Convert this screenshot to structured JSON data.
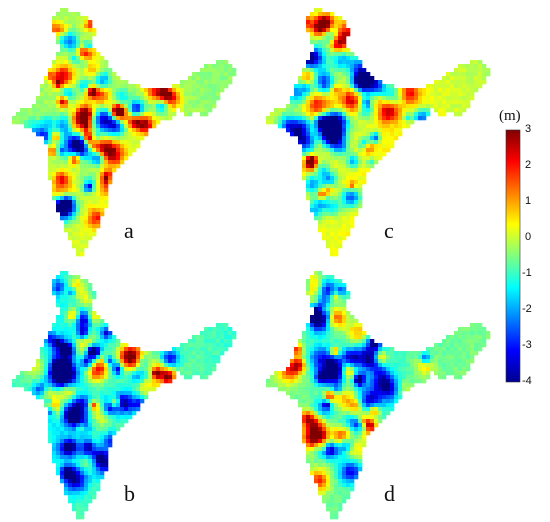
{
  "panels": [
    {
      "label": "a",
      "seed": 11,
      "base": -0.15,
      "hot": 0.55,
      "cold": 0.45
    },
    {
      "label": "c",
      "seed": 29,
      "base": 0.15,
      "hot": 0.4,
      "cold": 0.6
    },
    {
      "label": "b",
      "seed": 47,
      "base": -0.9,
      "hot": 0.5,
      "cold": 0.75
    },
    {
      "label": "d",
      "seed": 83,
      "base": -0.7,
      "hot": 0.55,
      "cold": 0.6
    }
  ],
  "colorbar": {
    "unit": "(m)",
    "min": -4,
    "max": 3,
    "ticks": [
      "3",
      "2",
      "1",
      "0",
      "-1",
      "-2",
      "-3",
      "-4"
    ],
    "colormap": "jet"
  }
}
